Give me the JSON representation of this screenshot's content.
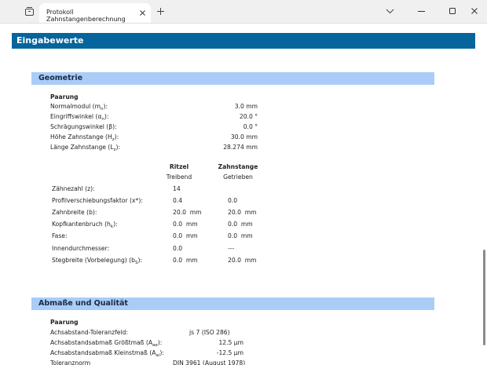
{
  "browser": {
    "tab_title": "Protokoll Zahnstangenberechnung"
  },
  "page": {
    "title": "Eingabewerte",
    "geometry": {
      "title": "Geometrie",
      "pairing_title": "Paarung",
      "pairing": [
        {
          "label": {
            "text": "Normalmodul (m",
            "sub": "n",
            "tail": "):"
          },
          "value": "3.0 mm"
        },
        {
          "label": {
            "text": "Eingriffswinkel (α",
            "sub": "n",
            "tail": "):"
          },
          "value": "20.0 °"
        },
        {
          "label": "Schrägungswinkel (β):",
          "value": "0.0 °"
        },
        {
          "label": {
            "text": "Höhe Zahnstange (H",
            "sub": "z",
            "tail": "):"
          },
          "value": "30.0 mm"
        },
        {
          "label": {
            "text": "Länge Zahnstange (L",
            "sub": "z",
            "tail": "):"
          },
          "value": "28.274 mm"
        }
      ],
      "table": {
        "headers": [
          {
            "name": "Ritzel",
            "role": "Treibend"
          },
          {
            "name": "Zahnstange",
            "role": "Getrieben"
          }
        ],
        "rows": [
          {
            "label": "Zähnezahl (z):",
            "values": [
              "14"
            ]
          },
          {
            "label": "Profilverschiebungsfaktor (x*):",
            "values": [
              "0.4",
              "0.0"
            ]
          },
          {
            "label": "Zahnbreite (b):",
            "values": [
              "20.0  mm",
              "20.0  mm"
            ]
          },
          {
            "label": {
              "text": "Kopfkantenbruch (h",
              "sub": "k",
              "tail": "):"
            },
            "values": [
              "0.0  mm",
              "0.0  mm"
            ]
          },
          {
            "label": "Fase:",
            "values": [
              "0.0  mm",
              "0.0  mm"
            ]
          },
          {
            "label": "Innendurchmesser:",
            "values": [
              "0.0",
              "---"
            ]
          },
          {
            "label": {
              "text": "Stegbreite (Vorbelegung) (b",
              "sub": "S",
              "tail": "):"
            },
            "values": [
              "0.0  mm",
              "20.0  mm"
            ]
          }
        ]
      }
    },
    "tolerance": {
      "title": "Abmaße und Qualität",
      "pairing_title": "Paarung",
      "rows": [
        {
          "label": "Achsabstand-Toleranzfeld:",
          "value": "js 7 (ISO 286)"
        },
        {
          "label": {
            "text": "Achsabstandsabmaß Größtmaß (A",
            "sub": "ae",
            "tail": "):"
          },
          "value": "12.5 µm"
        },
        {
          "label": {
            "text": "Achsabstandsabmaß Kleinstmaß (A",
            "sub": "ai",
            "tail": "):"
          },
          "value": "-12.5 µm"
        },
        {
          "label": "Toleranznorm",
          "value": "DIN 3961 (August 1978)"
        }
      ]
    }
  }
}
